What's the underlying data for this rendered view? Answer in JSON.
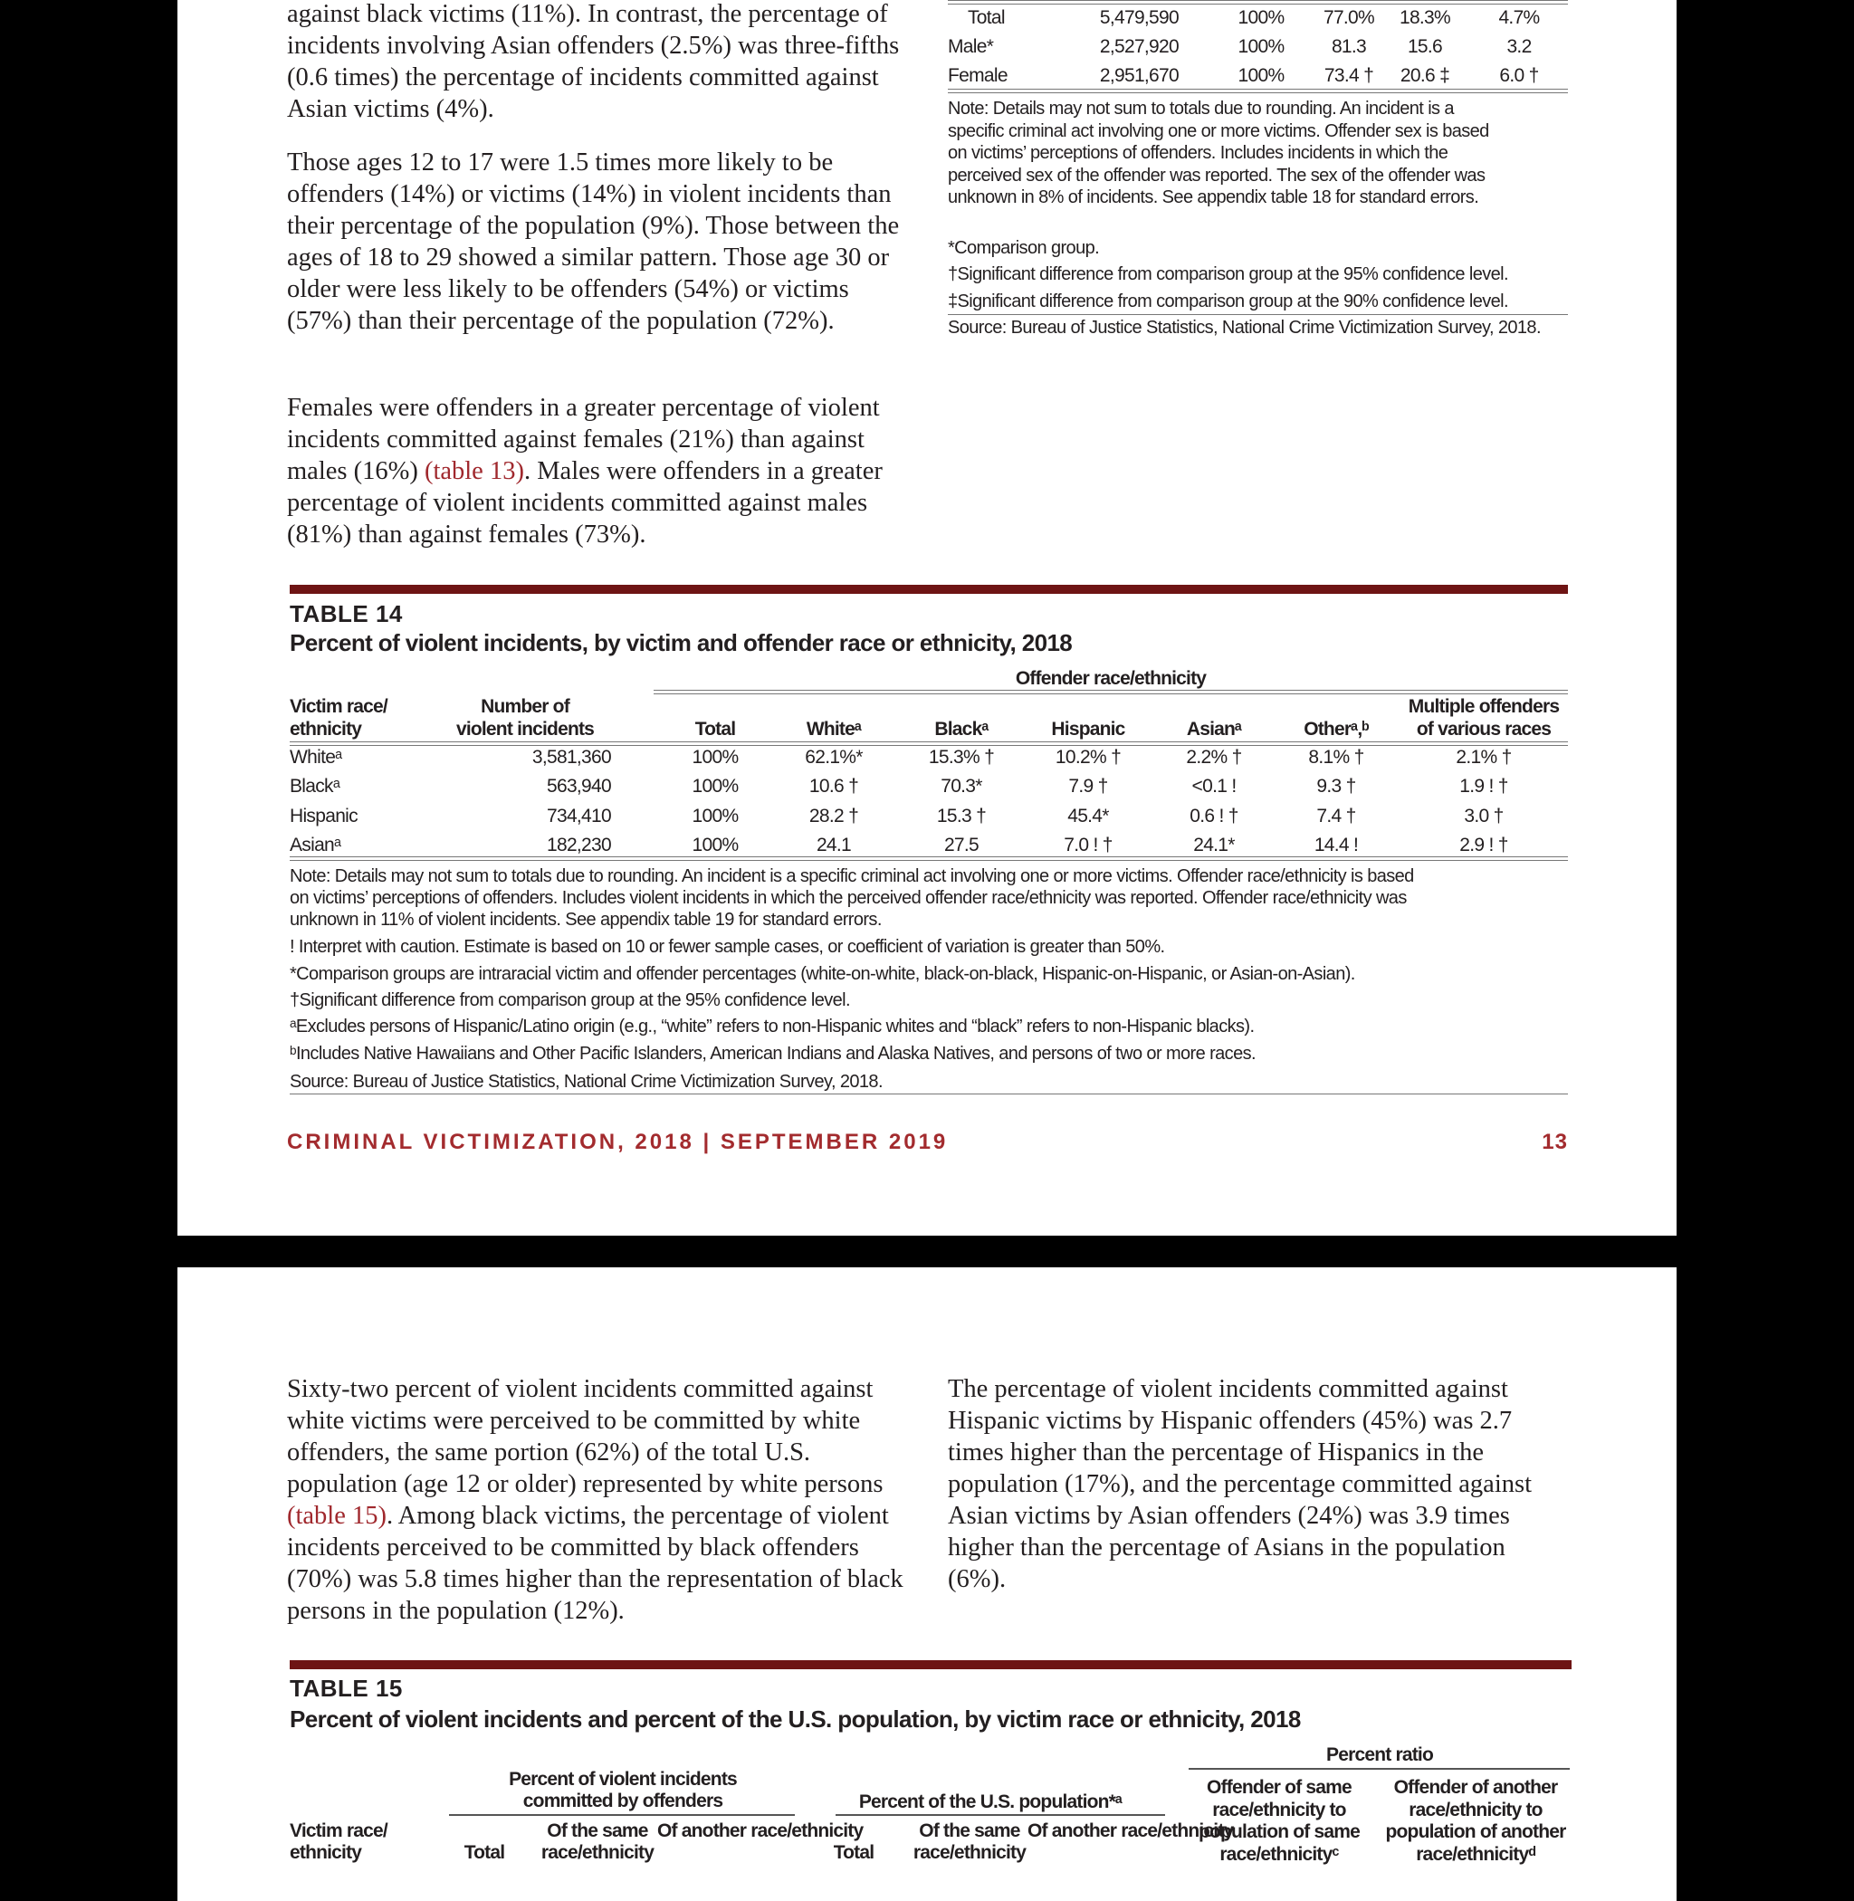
{
  "page1": {
    "left_paragraphs": [
      {
        "text": "against black victims (11%). In contrast, the percentage of incidents involving Asian offenders (2.5%) was three-fifths (0.6 times) the percentage of incidents committed against Asian victims (4%)."
      },
      {
        "text": "Those ages 12 to 17 were 1.5 times more likely to be offenders (14%) or victims (14%) in violent incidents than their percentage of the population (9%). Those between the ages of 18 to 29 showed a similar pattern. Those age 30 or older were less likely to be offenders (54%) or victims (57%) than their percentage of the population (72%)."
      },
      {
        "before": "Females were offenders in a greater percentage of violent incidents committed against females (21%) than against males (16%) ",
        "link": "(table 13)",
        "after": ". Males were offenders in a greater percentage of violent incidents committed against males (81%) than against females (73%)."
      }
    ],
    "table13": {
      "rows": [
        [
          "Total",
          "5,479,590",
          "100%",
          "77.0%",
          "18.3%",
          "4.7%"
        ],
        [
          "Male*",
          "2,527,920",
          "100%",
          "81.3",
          "15.6",
          "3.2"
        ],
        [
          "Female",
          "2,951,670",
          "100%",
          "73.4 †",
          "20.6 ‡",
          "6.0 †"
        ]
      ],
      "notes": [
        "Note: Details may not sum to totals due to rounding. An incident is a",
        "specific criminal act involving one or more victims. Offender sex is based",
        "on victims’ perceptions of offenders. Includes incidents in which the",
        "perceived sex of the offender was reported. The sex of the offender was",
        "unknown in 8% of incidents. See appendix table 18 for standard errors.",
        "*Comparison group.",
        "†Significant difference from comparison group at the 95% confidence level.",
        "‡Significant difference from comparison group at the 90% confidence level.",
        "Source: Bureau of Justice Statistics, National Crime Victimization Survey, 2018."
      ]
    },
    "table14": {
      "label": "TABLE 14",
      "title": "Percent of violent incidents, by victim and offender race or ethnicity, 2018",
      "group_header": "Offender race/ethnicity",
      "headers": [
        [
          "Victim race/",
          "ethnicity"
        ],
        [
          "Number of",
          "violent incidents"
        ],
        [
          "",
          "Total"
        ],
        [
          "",
          "Whiteᵃ"
        ],
        [
          "",
          "Blackᵃ"
        ],
        [
          "",
          "Hispanic"
        ],
        [
          "",
          "Asianᵃ"
        ],
        [
          "",
          "Otherᵃ,ᵇ"
        ],
        [
          "Multiple offenders",
          "of various races"
        ]
      ],
      "rows": [
        [
          "Whiteᵃ",
          "3,581,360",
          "100%",
          "62.1%*",
          "15.3% †",
          "10.2% †",
          "2.2% †",
          "8.1% †",
          "2.1% †"
        ],
        [
          "Blackᵃ",
          "563,940",
          "100%",
          "10.6 †",
          "70.3*",
          "7.9 †",
          "<0.1 !",
          "9.3 †",
          "1.9 ! †"
        ],
        [
          "Hispanic",
          "734,410",
          "100%",
          "28.2 †",
          "15.3 †",
          "45.4*",
          "0.6 ! †",
          "7.4 †",
          "3.0 †"
        ],
        [
          "Asianᵃ",
          "182,230",
          "100%",
          "24.1",
          "27.5",
          "7.0 ! †",
          "24.1*",
          "14.4 !",
          "2.9 ! †"
        ]
      ],
      "notes": [
        "Note: Details may not sum to totals due to rounding. An incident is a specific criminal act involving one or more victims. Offender race/ethnicity is based",
        "on victims’ perceptions of offenders. Includes violent incidents in which the perceived offender race/ethnicity was reported. Offender race/ethnicity was",
        "unknown in 11% of violent incidents. See appendix table 19 for standard errors.",
        "! Interpret with caution. Estimate is based on 10 or fewer sample cases, or coefficient of variation is greater than 50%.",
        "*Comparison groups are intraracial victim and offender percentages (white-on-white, black-on-black, Hispanic-on-Hispanic, or Asian-on-Asian).",
        "†Significant difference from comparison group at the 95% confidence level.",
        "ᵃExcludes persons of Hispanic/Latino origin (e.g., “white” refers to non-Hispanic whites and “black” refers to non-Hispanic blacks).",
        "ᵇIncludes Native Hawaiians and Other Pacific Islanders, American Indians and Alaska Natives, and persons of two or more races.",
        "Source: Bureau of Justice Statistics, National Crime Victimization Survey, 2018."
      ]
    },
    "footer": {
      "title": "CRIMINAL VICTIMIZATION, 2018 | SEPTEMBER 2019",
      "page_number": "13"
    }
  },
  "page2": {
    "left_paragraph": {
      "before": "Sixty-two percent of violent incidents committed against white victims were perceived to be committed by white offenders, the same portion (62%) of the total U.S. population (age 12 or older) represented by white persons ",
      "link": "(table 15)",
      "after": ". Among black victims, the percentage of violent incidents perceived to be committed by black offenders (70%) was 5.8 times higher than the representation of black persons in the population (12%)."
    },
    "right_paragraph": "The percentage of violent incidents committed against Hispanic victims by Hispanic offenders (45%) was 2.7 times higher than the percentage of Hispanics in the population (17%), and the percentage committed against Asian victims by Asian offenders (24%) was 3.9 times higher than the percentage of Asians in the population (6%).",
    "table15": {
      "label": "TABLE 15",
      "title": "Percent of violent incidents and percent of the U.S. population, by victim race or ethnicity, 2018",
      "group_ratio": "Percent ratio",
      "group_incidents": [
        "Percent of violent incidents",
        "committed by offenders"
      ],
      "group_population": "Percent of the U.S. population*ᵃ",
      "ratio_same": [
        "Offender of same",
        "race/ethnicity to",
        "population of same",
        "race/ethnicityᶜ"
      ],
      "ratio_another": [
        "Offender of another",
        "race/ethnicity to",
        "population of another",
        "race/ethnicityᵈ"
      ],
      "victim_header": [
        "Victim race/",
        "ethnicity"
      ],
      "sub_headers": [
        "Total",
        "Of the same race/ethnicity",
        "Of another race/ethnicity",
        "Total",
        "Of the same race/ethnicity",
        "Of another race/ethnicity"
      ]
    }
  },
  "colors": {
    "accent_bar": "#6e1414",
    "link": "#a0282d",
    "footer": "#a32b2e",
    "background": "#000000",
    "page": "#ffffff"
  }
}
